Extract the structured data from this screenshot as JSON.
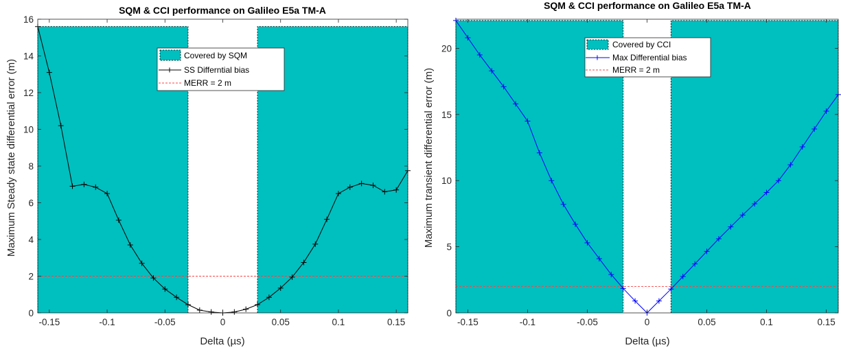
{
  "chart_data": [
    {
      "type": "line",
      "title": "SQM & CCI performance on Galileo E5a TM-A",
      "xlabel": "Delta (µs)",
      "ylabel": "Maximum Steady state differential error (m)",
      "xlim": [
        -0.16,
        0.16
      ],
      "ylim": [
        0,
        16
      ],
      "xticks": [
        -0.15,
        -0.1,
        -0.05,
        0,
        0.05,
        0.1,
        0.15
      ],
      "xtick_labels": [
        "-0.15",
        "-0.1",
        "-0.05",
        "0",
        "0.05",
        "0.1",
        "0.15"
      ],
      "yticks": [
        0,
        2,
        4,
        6,
        8,
        10,
        12,
        14,
        16
      ],
      "ytick_labels": [
        "0",
        "2",
        "4",
        "6",
        "8",
        "10",
        "12",
        "14",
        "16"
      ],
      "grid": false,
      "legend_position": "top-center",
      "regions": [
        {
          "name": "Covered by SQM",
          "x_ranges": [
            [
              -0.16,
              -0.03
            ],
            [
              0.03,
              0.16
            ]
          ],
          "top": 15.6,
          "color": "#00bfbf"
        }
      ],
      "series": [
        {
          "name": "SS Differntial bias",
          "color": "#000000",
          "marker": "+",
          "x": [
            -0.16,
            -0.15,
            -0.14,
            -0.13,
            -0.12,
            -0.11,
            -0.1,
            -0.09,
            -0.08,
            -0.07,
            -0.06,
            -0.05,
            -0.04,
            -0.03,
            -0.02,
            -0.01,
            0,
            0.01,
            0.02,
            0.03,
            0.04,
            0.05,
            0.06,
            0.07,
            0.08,
            0.09,
            0.1,
            0.11,
            0.12,
            0.13,
            0.14,
            0.15,
            0.16
          ],
          "y": [
            15.6,
            13.1,
            10.2,
            6.9,
            7.0,
            6.85,
            6.5,
            5.05,
            3.7,
            2.7,
            1.9,
            1.3,
            0.85,
            0.45,
            0.15,
            0.05,
            0.0,
            0.05,
            0.2,
            0.45,
            0.85,
            1.35,
            1.95,
            2.75,
            3.75,
            5.1,
            6.5,
            6.85,
            7.05,
            6.95,
            6.6,
            6.7,
            7.75
          ]
        }
      ],
      "reference_lines": [
        {
          "name": "MERR = 2 m",
          "y": 2,
          "color": "#ff4040",
          "style": "dashed"
        }
      ]
    },
    {
      "type": "line",
      "title": "SQM & CCI performance on Galileo E5a TM-A",
      "xlabel": "Delta (µs)",
      "ylabel": "Maximum transient differential error (m)",
      "xlim": [
        -0.16,
        0.16
      ],
      "ylim": [
        0,
        22.2
      ],
      "xticks": [
        -0.15,
        -0.1,
        -0.05,
        0,
        0.05,
        0.1,
        0.15
      ],
      "xtick_labels": [
        "-0.15",
        "-0.1",
        "-0.05",
        "0",
        "0.05",
        "0.1",
        "0.15"
      ],
      "yticks": [
        0,
        5,
        10,
        15,
        20
      ],
      "ytick_labels": [
        "0",
        "5",
        "10",
        "15",
        "20"
      ],
      "grid": false,
      "legend_position": "top-center",
      "regions": [
        {
          "name": "Covered by CCI",
          "x_ranges": [
            [
              -0.16,
              -0.02
            ],
            [
              0.02,
              0.16
            ]
          ],
          "top": 22.1,
          "color": "#00bfbf"
        }
      ],
      "series": [
        {
          "name": "Max Differential bias",
          "color": "#0000ff",
          "marker": "+",
          "x": [
            -0.16,
            -0.15,
            -0.14,
            -0.13,
            -0.12,
            -0.11,
            -0.1,
            -0.09,
            -0.08,
            -0.07,
            -0.06,
            -0.05,
            -0.04,
            -0.03,
            -0.02,
            -0.01,
            0,
            0.01,
            0.02,
            0.03,
            0.04,
            0.05,
            0.06,
            0.07,
            0.08,
            0.09,
            0.1,
            0.11,
            0.12,
            0.13,
            0.14,
            0.15,
            0.16
          ],
          "y": [
            22.1,
            20.8,
            19.5,
            18.3,
            17.1,
            15.8,
            14.5,
            12.1,
            10.0,
            8.2,
            6.7,
            5.3,
            4.1,
            2.9,
            1.85,
            0.9,
            0.0,
            0.9,
            1.8,
            2.75,
            3.7,
            4.65,
            5.6,
            6.5,
            7.4,
            8.25,
            9.1,
            10.0,
            11.2,
            12.55,
            13.9,
            15.25,
            16.5
          ]
        }
      ],
      "reference_lines": [
        {
          "name": "MERR = 2 m",
          "y": 2,
          "color": "#ff4040",
          "style": "dashed"
        }
      ]
    }
  ]
}
